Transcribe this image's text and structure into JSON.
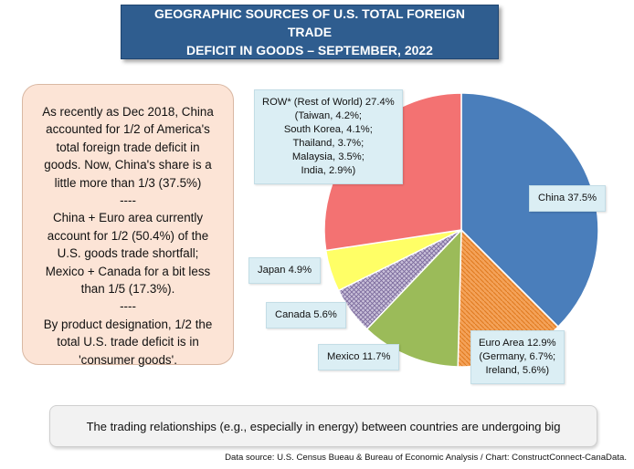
{
  "title": {
    "line1": "GEOGRAPHIC SOURCES OF U.S. TOTAL FOREIGN TRADE",
    "line2": "DEFICIT IN GOODS – SEPTEMBER, 2022"
  },
  "note": {
    "lines": [
      "As recently as Dec 2018, China",
      "accounted for 1/2 of America's",
      "total foreign trade deficit in",
      "goods. Now, China's share is a",
      "little more than 1/3 (37.5%)",
      "----",
      "China + Euro area currently",
      "account for 1/2 (50.4%) of the",
      "U.S. goods trade shortfall;",
      "Mexico + Canada for a bit less",
      "than 1/5 (17.3%).",
      "----",
      "By product designation, 1/2  the",
      "total U.S. trade deficit is in",
      "'consumer goods'."
    ]
  },
  "bottom_note": "The trading  relationships (e.g., especially in energy) between countries are undergoing big",
  "source": "Data source: U.S. Census Bueau & Bureau of Economic Analysis / Chart: ConstructConnect-CanaData.",
  "chart_data": {
    "type": "pie",
    "title": "GEOGRAPHIC SOURCES OF U.S. TOTAL FOREIGN TRADE DEFICIT IN GOODS – SEPTEMBER, 2022",
    "unit": "%",
    "slices": [
      {
        "name": "China",
        "value": 37.5,
        "color": "#4a7ebb",
        "label_lines": [
          "China 37.5%"
        ]
      },
      {
        "name": "Euro Area",
        "value": 12.9,
        "color": "#f0913a",
        "label_lines": [
          "Euro Area 12.9%",
          "(Germany, 6.7%;",
          "Ireland, 5.6%)"
        ]
      },
      {
        "name": "Mexico",
        "value": 11.7,
        "color": "#9bbb59",
        "label_lines": [
          "Mexico 11.7%"
        ]
      },
      {
        "name": "Canada",
        "value": 5.6,
        "color": "#8d7fa8",
        "label_lines": [
          "Canada 5.6%"
        ]
      },
      {
        "name": "Japan",
        "value": 4.9,
        "color": "#ffff66",
        "label_lines": [
          "Japan 4.9%"
        ]
      },
      {
        "name": "ROW* (Rest of World)",
        "value": 27.4,
        "color": "#f37272",
        "label_lines": [
          "ROW* (Rest of World) 27.4%",
          "(Taiwan, 4.2%;",
          "South Korea, 4.1%;",
          "Thailand, 3.7%;",
          "Malaysia, 3.5%;",
          "India, 2.9%)"
        ]
      }
    ]
  }
}
